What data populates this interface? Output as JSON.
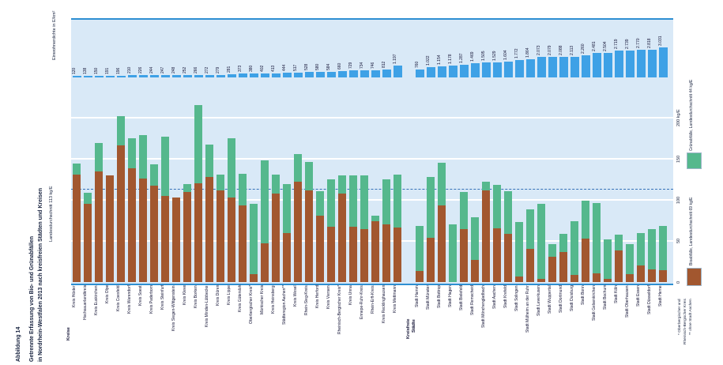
{
  "figure": {
    "number": "Abbildung 14",
    "title_line1": "Getrennte Erfassung von Bio- und Grünabfällen",
    "title_line2": "in Nordrhein-Westfalen 2013 nach kreisfreien Städten und Kreisen"
  },
  "top_axis": {
    "label": "Einwohnerdichte in E/km²"
  },
  "main_axis": {
    "left_label": "Landesdurchschnitt 113 kg/E",
    "tick_labels": [
      "200 kg/E",
      "150",
      "100",
      "50",
      "0"
    ],
    "tick_values": [
      200,
      150,
      100,
      50,
      0
    ]
  },
  "legend": {
    "gruen_label": "Grünabfälle, Landesdurchschnitt 44 kg/E",
    "bio_label": "Bioabfälle, Landesdurchschnitt 69 kg/E"
  },
  "footnote": {
    "line1": "* Oberbergischer und",
    "line2": "Rheinisch-Bergischer Kreis",
    "line3": "** ohne Stadt Aachen"
  },
  "groups": {
    "left": "Kreise",
    "right_line1": "Kreisfreie",
    "right_line2": "Städte"
  },
  "colors": {
    "panel_bg": "#d9e9f7",
    "band_line": "#2e8fd2",
    "density_bar": "#3ea1e6",
    "bio": "#a2572f",
    "gruen": "#55b88d",
    "grid": "#ffffff",
    "average_line": "#3572b8"
  },
  "chart_data": {
    "type": "bar",
    "stacked": true,
    "unit": "kg/E",
    "title": "Getrennte Erfassung von Bio- und Grünabfällen in Nordrhein-Westfalen 2013 nach kreisfreien Städten und Kreisen",
    "ylabel": "kg/E",
    "ylim": [
      0,
      230
    ],
    "grid": true,
    "landesdurchschnitt_gesamt": 113,
    "landesdurchschnitt_bio": 69,
    "landesdurchschnitt_gruen": 44,
    "group_split_index": 30,
    "categories": [
      "Kreis Höxter",
      "Hochsauerlandkreis",
      "Kreis Euskirchen",
      "Kreis Olpe",
      "Kreis Coesfeld",
      "Kreis Warendorf",
      "Kreis Soest",
      "Kreis Paderborn",
      "Kreis Steinfurt",
      "Kreis Siegen-Wittgenstein",
      "Kreis Kleve",
      "Kreis Borken",
      "Kreis Minden-Lübbecke",
      "Kreis Düren",
      "Kreis Lippe",
      "Kreis Gütersloh",
      "Oberbergischer Kreis*",
      "Märkischer Kreis",
      "Kreis Heinsberg",
      "Städteregion Aachen**",
      "Kreis Wesel",
      "Rhein-Sieg-Kreis",
      "Kreis Herford",
      "Kreis Viersen",
      "Rheinisch-Bergischer Kreis*",
      "Kreis Unna",
      "Ennepe-Ruhr-Kreis",
      "Rhein-Erft-Kreis",
      "Kreis Recklinghausen",
      "Kreis Mettmann",
      "Stadt Hamm",
      "Stadt Münster",
      "Stadt Bottrop",
      "Stadt Hagen",
      "Stadt Bielefeld",
      "Stadt Remscheid",
      "Stadt Mönchengladbach",
      "Stadt Aachen",
      "Stadt Krefeld",
      "Stadt Solingen",
      "Stadt Mülheim an der Ruhr",
      "Stadt Leverkusen",
      "Stadt Wuppertal",
      "Stadt Dortmund",
      "Stadt Duisburg",
      "Stadt Bonn",
      "Stadt Gelsenkirchen",
      "Stadt Bochum",
      "Stadt Köln",
      "Stadt Oberhausen",
      "Stadt Essen",
      "Stadt Düsseldorf",
      "Stadt Herne"
    ],
    "einwohnerdichte": [
      "120",
      "138",
      "150",
      "191",
      "196",
      "210",
      "226",
      "244",
      "247",
      "248",
      "252",
      "266",
      "272",
      "279",
      "281",
      "373",
      "380",
      "402",
      "413",
      "444",
      "517",
      "528",
      "580",
      "584",
      "660",
      "729",
      "734",
      "746",
      "812",
      "1.197",
      "760",
      "1.022",
      "1.154",
      "1.178",
      "1.287",
      "1.469",
      "1.505",
      "1.529",
      "1.604",
      "1.772",
      "1.864",
      "2.073",
      "2.079",
      "2.088",
      "2.113",
      "2.260",
      "2.481",
      "2.504",
      "2.719",
      "2.739",
      "2.770",
      "2.818",
      "3.031"
    ],
    "series": [
      {
        "name": "Bioabfälle (kg/E)",
        "color": "#a2572f",
        "values": [
          131,
          95,
          135,
          130,
          166,
          138,
          126,
          117,
          105,
          103,
          110,
          120,
          128,
          112,
          103,
          93,
          10,
          47,
          108,
          60,
          122,
          112,
          81,
          67,
          108,
          67,
          64,
          74,
          70,
          66,
          13,
          54,
          93,
          0,
          64,
          27,
          112,
          65,
          59,
          7,
          40,
          4,
          31,
          37,
          9,
          53,
          11,
          4,
          38,
          10,
          20,
          15,
          14
        ]
      },
      {
        "name": "Grünabfälle (kg/E)",
        "color": "#55b88d",
        "values": [
          13,
          14,
          34,
          0,
          36,
          37,
          53,
          26,
          72,
          0,
          9,
          95,
          39,
          19,
          72,
          39,
          85,
          101,
          23,
          59,
          34,
          34,
          30,
          58,
          22,
          63,
          66,
          7,
          55,
          65,
          55,
          74,
          52,
          70,
          46,
          52,
          10,
          53,
          52,
          66,
          48,
          91,
          15,
          22,
          65,
          46,
          85,
          48,
          20,
          36,
          40,
          49,
          54
        ]
      }
    ]
  }
}
